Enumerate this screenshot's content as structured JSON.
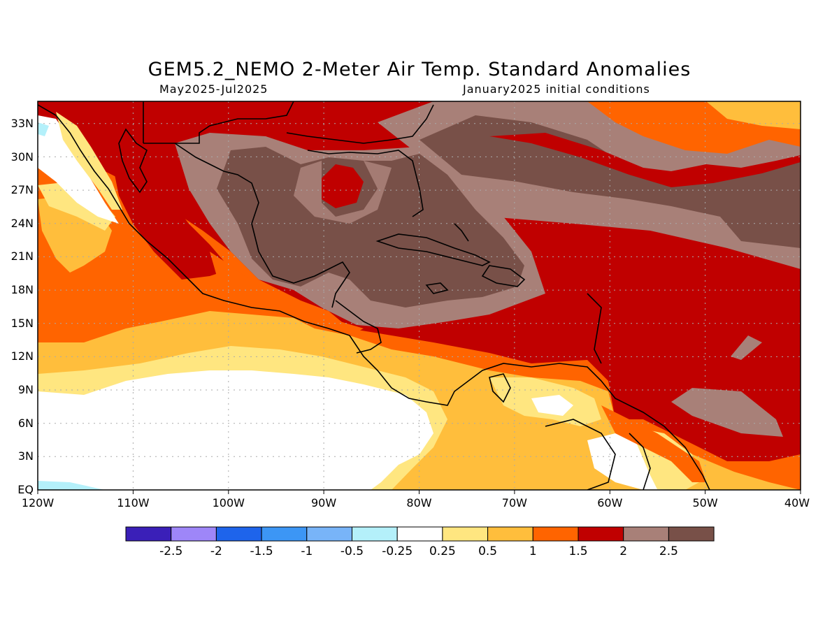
{
  "title": "GEM5.2_NEMO 2-Meter Air Temp. Standard Anomalies",
  "period": "May2025-Jul2025",
  "initial_conditions": "January2025 initial conditions",
  "map": {
    "lat_labels": [
      "33N",
      "30N",
      "27N",
      "24N",
      "21N",
      "18N",
      "15N",
      "12N",
      "9N",
      "6N",
      "3N",
      "EQ"
    ],
    "lon_labels": [
      "120W",
      "110W",
      "100W",
      "90W",
      "80W",
      "70W",
      "60W",
      "50W",
      "40W"
    ],
    "lon_range": [
      -120,
      -40
    ],
    "lat_range": [
      0,
      35
    ],
    "grid": true
  },
  "colorbar": {
    "colors": [
      "#3a1fb8",
      "#9e86f8",
      "#1e64eb",
      "#3c96f5",
      "#78b4f8",
      "#b4f0fa",
      "#ffffff",
      "#ffe680",
      "#ffbe3c",
      "#ff6400",
      "#c00000",
      "#a88078",
      "#785048"
    ],
    "labels": [
      "-2.5",
      "-2",
      "-1.5",
      "-1",
      "-0.5",
      "-0.25",
      "0.25",
      "0.5",
      "1",
      "1.5",
      "2",
      "2.5"
    ]
  },
  "legend_colors": {
    "white": "#ffffff",
    "light_yellow": "#ffe680",
    "yellow_orange": "#ffbe3c",
    "orange": "#ff6400",
    "red": "#c00000",
    "light_brown": "#a88078",
    "dark_brown": "#785048",
    "light_blue": "#b4f0fa"
  }
}
